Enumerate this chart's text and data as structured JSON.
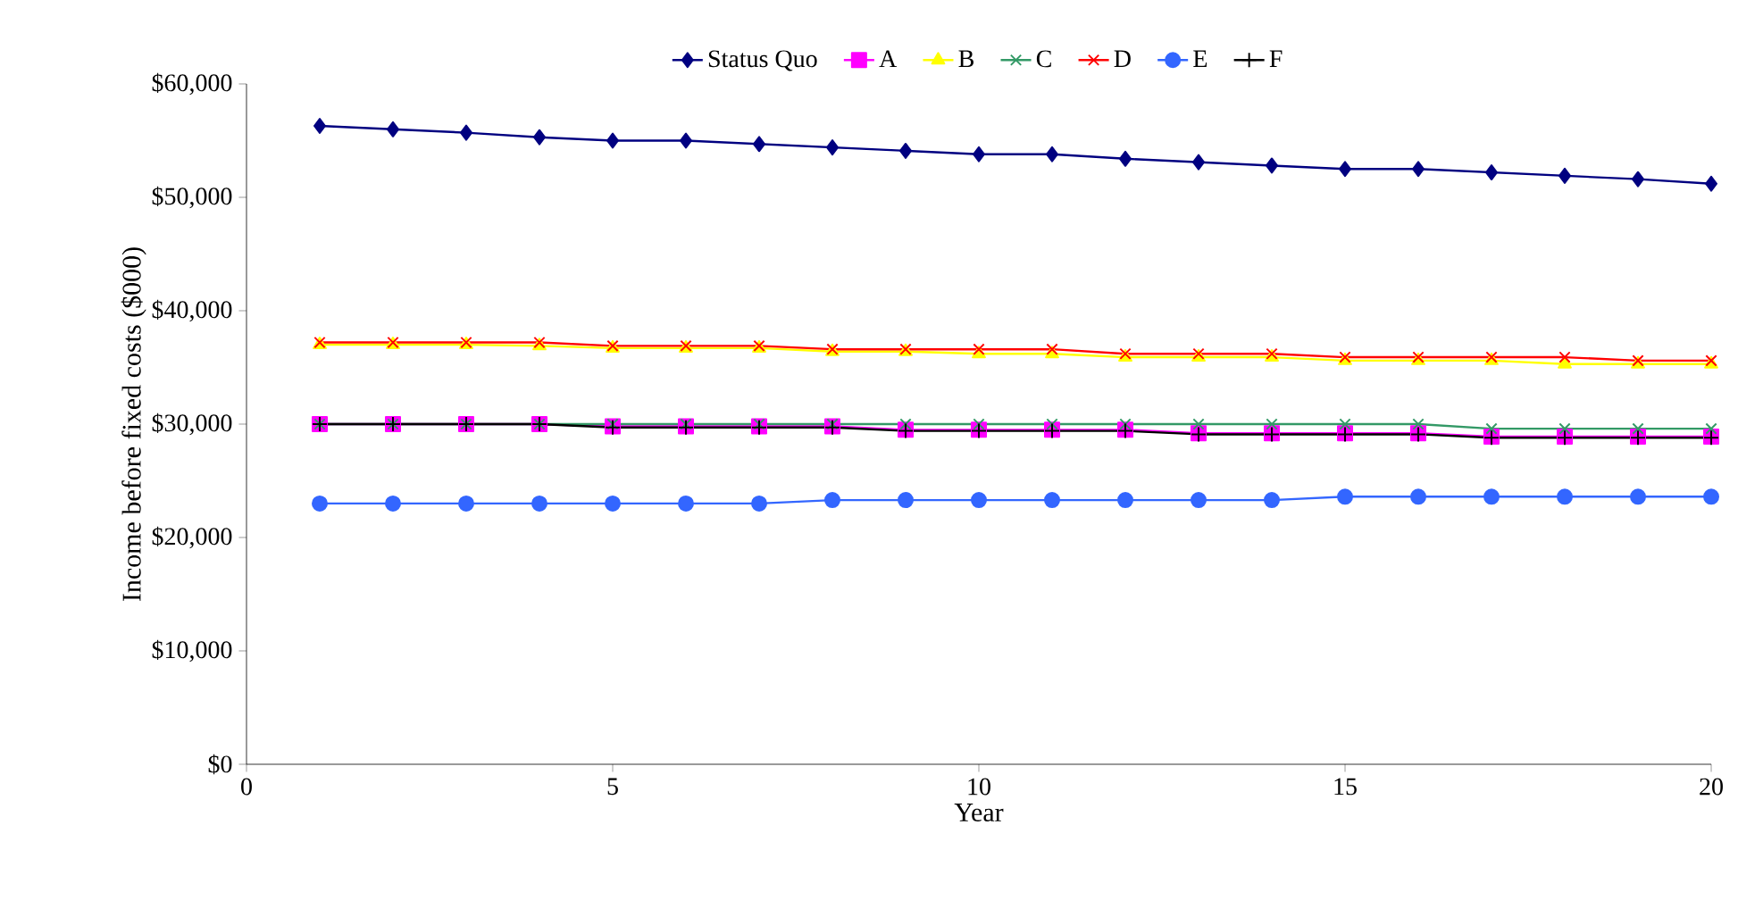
{
  "chart_data": {
    "type": "line",
    "xlabel": "Year",
    "ylabel": "Income before fixed costs  ($000)",
    "x": [
      1,
      2,
      3,
      4,
      5,
      6,
      7,
      8,
      9,
      10,
      11,
      12,
      13,
      14,
      15,
      16,
      17,
      18,
      19,
      20
    ],
    "xlim": [
      0,
      20
    ],
    "xticks": [
      0,
      5,
      10,
      15,
      20
    ],
    "ylim": [
      0,
      60000
    ],
    "yticks": [
      {
        "value": 0,
        "label": "$0"
      },
      {
        "value": 10000,
        "label": "$10,000"
      },
      {
        "value": 20000,
        "label": "$20,000"
      },
      {
        "value": 30000,
        "label": "$30,000"
      },
      {
        "value": 40000,
        "label": "$40,000"
      },
      {
        "value": 50000,
        "label": "$50,000"
      },
      {
        "value": 60000,
        "label": "$60,000"
      }
    ],
    "legend": "top",
    "grid": false,
    "series": [
      {
        "name": "Status Quo",
        "color": "#000080",
        "marker": "diamond",
        "values": [
          56300,
          56000,
          55700,
          55300,
          55000,
          55000,
          54700,
          54400,
          54100,
          53800,
          53800,
          53400,
          53100,
          52800,
          52500,
          52500,
          52200,
          51900,
          51600,
          51200
        ]
      },
      {
        "name": "A",
        "color": "#ff00ff",
        "marker": "square",
        "values": [
          30000,
          30000,
          30000,
          30000,
          29800,
          29800,
          29800,
          29800,
          29500,
          29500,
          29500,
          29500,
          29200,
          29200,
          29200,
          29200,
          28900,
          28900,
          28900,
          28900
        ]
      },
      {
        "name": "B",
        "color": "#ffff00",
        "marker": "triangle",
        "values": [
          37000,
          37000,
          37000,
          36900,
          36700,
          36700,
          36700,
          36400,
          36400,
          36200,
          36200,
          35900,
          35900,
          35900,
          35600,
          35600,
          35600,
          35300,
          35300,
          35300
        ]
      },
      {
        "name": "C",
        "color": "#339966",
        "marker": "cross",
        "values": [
          30000,
          30000,
          30000,
          30000,
          30000,
          30000,
          30000,
          30000,
          30000,
          30000,
          30000,
          30000,
          30000,
          30000,
          30000,
          30000,
          29600,
          29600,
          29600,
          29600
        ]
      },
      {
        "name": "D",
        "color": "#ff0000",
        "marker": "cross",
        "values": [
          37200,
          37200,
          37200,
          37200,
          36900,
          36900,
          36900,
          36600,
          36600,
          36600,
          36600,
          36200,
          36200,
          36200,
          35900,
          35900,
          35900,
          35900,
          35600,
          35600
        ]
      },
      {
        "name": "E",
        "color": "#3366ff",
        "marker": "circle",
        "values": [
          23000,
          23000,
          23000,
          23000,
          23000,
          23000,
          23000,
          23300,
          23300,
          23300,
          23300,
          23300,
          23300,
          23300,
          23600,
          23600,
          23600,
          23600,
          23600,
          23600
        ]
      },
      {
        "name": "F",
        "color": "#000000",
        "marker": "plus",
        "values": [
          30000,
          30000,
          30000,
          30000,
          29700,
          29700,
          29700,
          29700,
          29400,
          29400,
          29400,
          29400,
          29100,
          29100,
          29100,
          29100,
          28800,
          28800,
          28800,
          28800
        ]
      }
    ]
  }
}
